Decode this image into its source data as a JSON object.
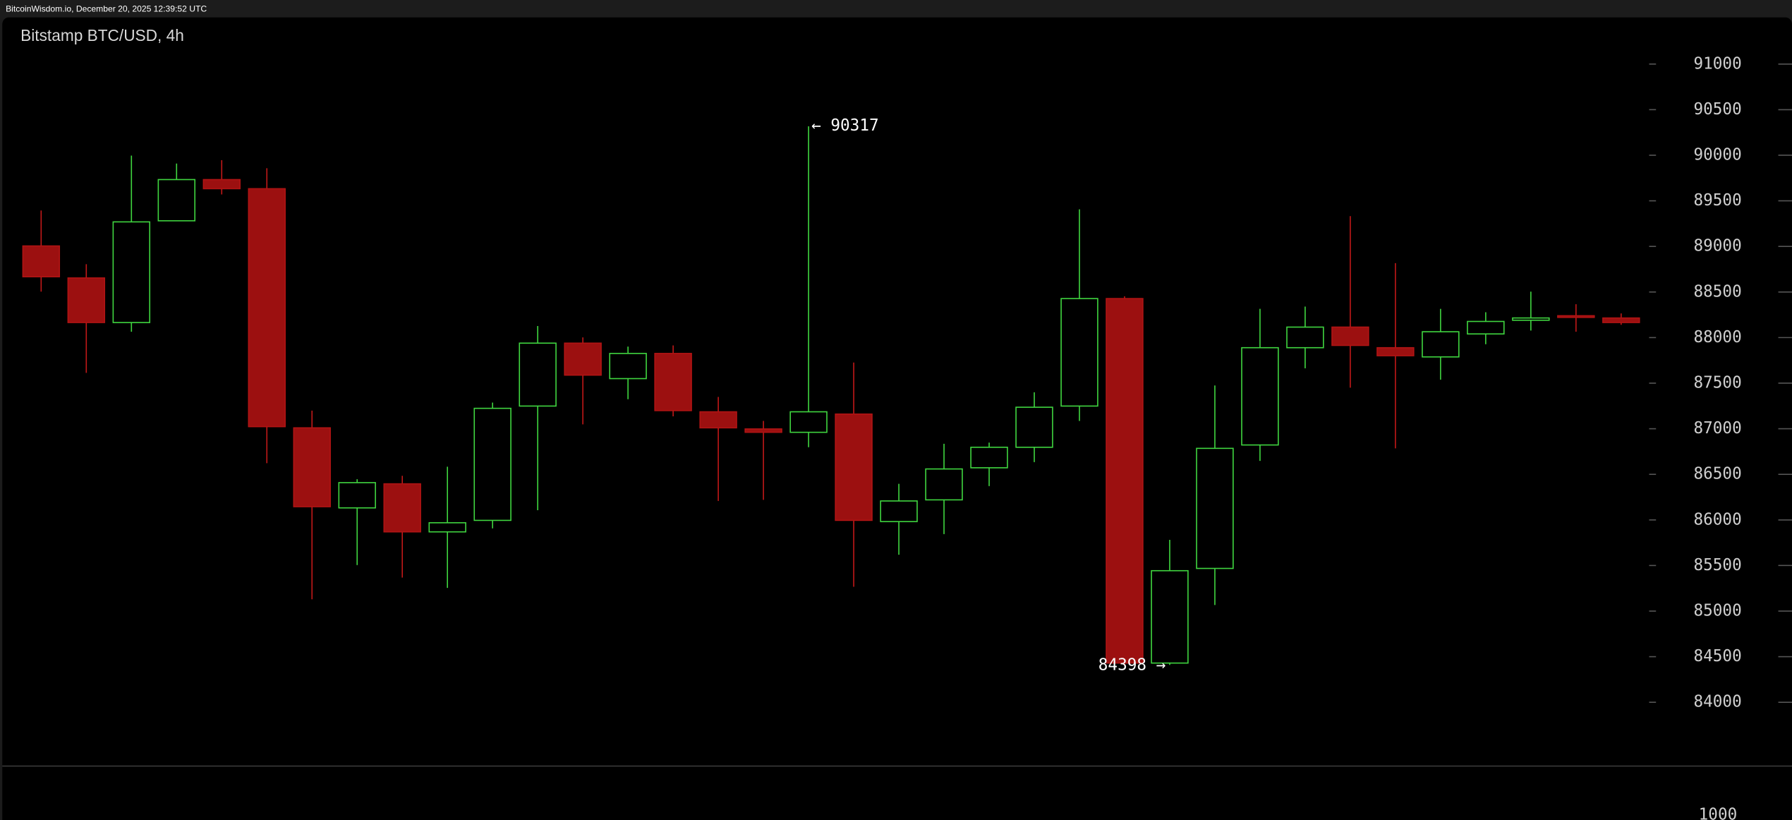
{
  "header": {
    "text": "BitcoinWisdom.io, December 20, 2025 12:39:52 UTC"
  },
  "chart_data": {
    "type": "candlestick",
    "title": "Bitstamp BTC/USD, 4h",
    "open": [
      89005,
      88654,
      88165,
      89281,
      89733,
      89633,
      87010,
      86132,
      86396,
      85869,
      85995,
      87249,
      87939,
      87550,
      87826,
      87186,
      86998,
      86961,
      87161,
      85982,
      86220,
      86572,
      86797,
      87249,
      88428,
      84430,
      85468,
      86822,
      87889,
      88115,
      87889,
      87788,
      88040,
      88190,
      88240,
      88215
    ],
    "high": [
      89394,
      88805,
      89996,
      89909,
      89946,
      89858,
      87199,
      86446,
      86484,
      86584,
      87287,
      88127,
      88002,
      87901,
      87914,
      87349,
      87086,
      90317,
      87726,
      86396,
      86835,
      86848,
      87400,
      89407,
      88453,
      85781,
      87475,
      88315,
      88340,
      89332,
      88817,
      88315,
      88278,
      88504,
      88366,
      88265
    ],
    "low": [
      88504,
      87613,
      88064,
      89281,
      89570,
      86622,
      85129,
      85505,
      85367,
      85254,
      85907,
      86107,
      87048,
      87324,
      87136,
      86208,
      86220,
      86797,
      85267,
      85618,
      85844,
      86371,
      86634,
      87086,
      84398,
      84410,
      85066,
      86647,
      87663,
      87450,
      86785,
      87538,
      87927,
      88077,
      88064,
      88140
    ],
    "close": [
      88667,
      88165,
      89269,
      89733,
      89633,
      87023,
      86145,
      86409,
      85869,
      85969,
      87224,
      87939,
      87588,
      87826,
      87199,
      87010,
      86961,
      87186,
      85995,
      86208,
      86559,
      86797,
      87236,
      88428,
      84430,
      85443,
      86785,
      87889,
      88115,
      87914,
      87801,
      88064,
      88177,
      88215,
      88230,
      88165
    ],
    "up_color": "#3fd43f",
    "down_color": "#9c1010",
    "ylim": [
      83300,
      91500
    ],
    "yticks": [
      84000,
      84500,
      85000,
      85500,
      86000,
      86500,
      87000,
      87500,
      88000,
      88500,
      89000,
      89500,
      90000,
      90500,
      91000
    ],
    "annotations": [
      "← 90317",
      "84398 →"
    ],
    "volume_ticks": [
      1000
    ]
  }
}
